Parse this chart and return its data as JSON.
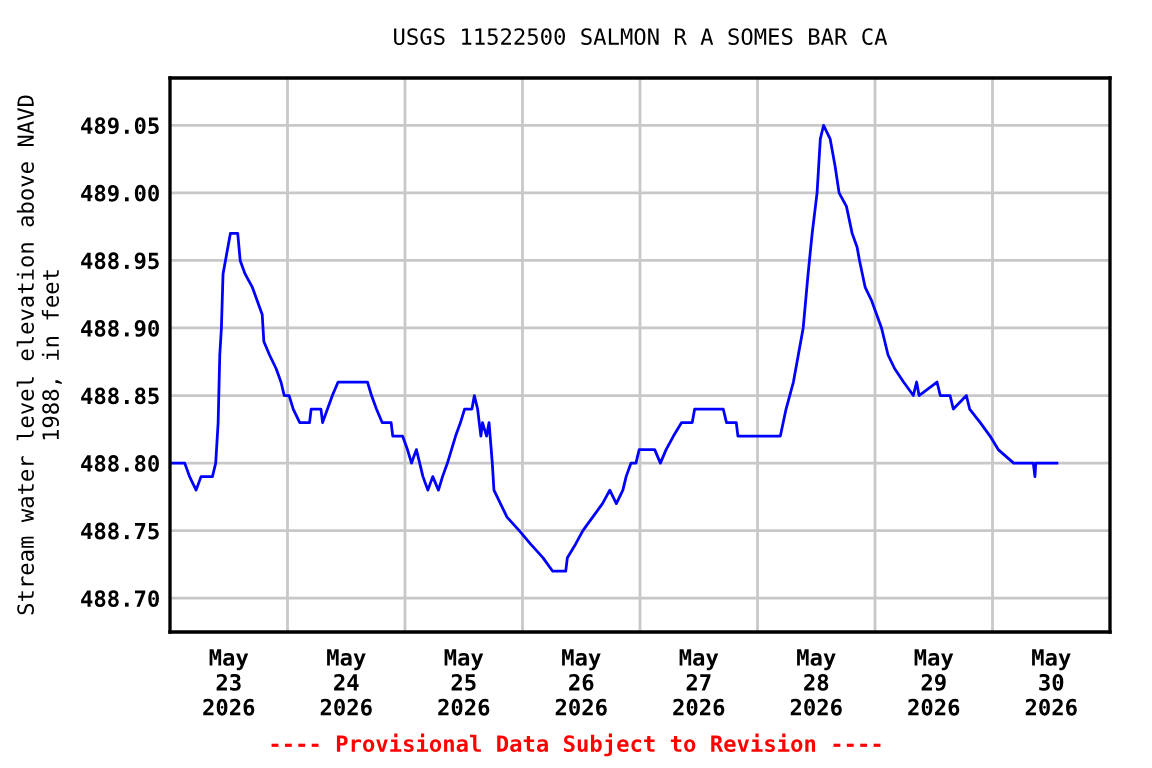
{
  "chart_data": {
    "type": "line",
    "title": "USGS 11522500 SALMON R A SOMES BAR CA",
    "ylabel": "Stream water level elevation above NAVD\n1988, in feet",
    "annotations": [
      "---- Provisional Data Subject to Revision ----"
    ],
    "x": [
      "2026-05-23T00:00",
      "2026-05-23T03:00",
      "2026-05-23T04:00",
      "2026-05-23T05:20",
      "2026-05-23T06:20",
      "2026-05-23T08:40",
      "2026-05-23T09:20",
      "2026-05-23T09:50",
      "2026-05-23T10:10",
      "2026-05-23T10:30",
      "2026-05-23T10:50",
      "2026-05-23T11:20",
      "2026-05-23T12:20",
      "2026-05-23T13:50",
      "2026-05-23T14:20",
      "2026-05-23T15:20",
      "2026-05-23T16:50",
      "2026-05-23T17:50",
      "2026-05-23T18:50",
      "2026-05-23T19:10",
      "2026-05-23T20:20",
      "2026-05-23T21:40",
      "2026-05-23T22:40",
      "2026-05-23T23:20",
      "2026-05-24T00:20",
      "2026-05-24T01:10",
      "2026-05-24T02:30",
      "2026-05-24T04:30",
      "2026-05-24T04:50",
      "2026-05-24T06:50",
      "2026-05-24T07:10",
      "2026-05-24T08:10",
      "2026-05-24T09:10",
      "2026-05-24T10:20",
      "2026-05-24T16:20",
      "2026-05-24T17:10",
      "2026-05-24T18:10",
      "2026-05-24T19:20",
      "2026-05-24T21:10",
      "2026-05-24T21:30",
      "2026-05-24T23:30",
      "2026-05-25T00:30",
      "2026-05-25T01:20",
      "2026-05-25T02:20",
      "2026-05-25T03:40",
      "2026-05-25T04:40",
      "2026-05-25T05:40",
      "2026-05-25T06:50",
      "2026-05-25T07:40",
      "2026-05-25T08:40",
      "2026-05-25T09:30",
      "2026-05-25T10:20",
      "2026-05-25T11:20",
      "2026-05-25T12:10",
      "2026-05-25T13:40",
      "2026-05-25T14:10",
      "2026-05-25T14:50",
      "2026-05-25T15:30",
      "2026-05-25T15:50",
      "2026-05-25T16:40",
      "2026-05-25T17:10",
      "2026-05-25T17:50",
      "2026-05-25T18:10",
      "2026-05-25T19:30",
      "2026-05-25T20:50",
      "2026-05-25T23:20",
      "2026-05-26T01:40",
      "2026-05-26T04:10",
      "2026-05-26T06:10",
      "2026-05-26T08:50",
      "2026-05-26T09:10",
      "2026-05-26T10:50",
      "2026-05-26T12:20",
      "2026-05-26T14:20",
      "2026-05-26T16:20",
      "2026-05-26T17:50",
      "2026-05-26T19:10",
      "2026-05-26T20:30",
      "2026-05-26T21:10",
      "2026-05-26T22:10",
      "2026-05-26T23:10",
      "2026-05-26T23:50",
      "2026-05-27T03:00",
      "2026-05-27T04:10",
      "2026-05-27T05:20",
      "2026-05-27T06:50",
      "2026-05-27T08:30",
      "2026-05-27T10:40",
      "2026-05-27T11:10",
      "2026-05-27T17:00",
      "2026-05-27T17:40",
      "2026-05-27T19:40",
      "2026-05-27T20:00",
      "2026-05-28T04:40",
      "2026-05-28T05:50",
      "2026-05-28T07:20",
      "2026-05-28T08:20",
      "2026-05-28T09:20",
      "2026-05-28T10:20",
      "2026-05-28T11:10",
      "2026-05-28T12:10",
      "2026-05-28T12:50",
      "2026-05-28T13:30",
      "2026-05-28T14:50",
      "2026-05-28T15:50",
      "2026-05-28T16:40",
      "2026-05-28T18:10",
      "2026-05-28T19:20",
      "2026-05-28T20:20",
      "2026-05-28T20:50",
      "2026-05-28T22:00",
      "2026-05-28T23:20",
      "2026-05-29T00:20",
      "2026-05-29T01:20",
      "2026-05-29T02:40",
      "2026-05-29T04:00",
      "2026-05-29T05:50",
      "2026-05-29T07:50",
      "2026-05-29T08:30",
      "2026-05-29T09:00",
      "2026-05-29T12:40",
      "2026-05-29T13:20",
      "2026-05-29T15:20",
      "2026-05-29T16:00",
      "2026-05-29T18:40",
      "2026-05-29T19:20",
      "2026-05-29T21:30",
      "2026-05-29T23:30",
      "2026-05-30T01:10",
      "2026-05-30T04:20",
      "2026-05-30T08:20",
      "2026-05-30T08:40",
      "2026-05-30T08:50",
      "2026-05-30T13:10"
    ],
    "series": [
      {
        "color": "#0000ff",
        "values": [
          488.8,
          488.8,
          488.79,
          488.78,
          488.79,
          488.79,
          488.8,
          488.83,
          488.88,
          488.9,
          488.94,
          488.95,
          488.97,
          488.97,
          488.95,
          488.94,
          488.93,
          488.92,
          488.91,
          488.89,
          488.88,
          488.87,
          488.86,
          488.85,
          488.85,
          488.84,
          488.83,
          488.83,
          488.84,
          488.84,
          488.83,
          488.84,
          488.85,
          488.86,
          488.86,
          488.85,
          488.84,
          488.83,
          488.83,
          488.82,
          488.82,
          488.81,
          488.8,
          488.81,
          488.79,
          488.78,
          488.79,
          488.78,
          488.79,
          488.8,
          488.81,
          488.82,
          488.83,
          488.84,
          488.84,
          488.85,
          488.84,
          488.82,
          488.83,
          488.82,
          488.83,
          488.8,
          488.78,
          488.77,
          488.76,
          488.75,
          488.74,
          488.73,
          488.72,
          488.72,
          488.73,
          488.74,
          488.75,
          488.76,
          488.77,
          488.78,
          488.77,
          488.78,
          488.79,
          488.8,
          488.8,
          488.81,
          488.81,
          488.8,
          488.81,
          488.82,
          488.83,
          488.83,
          488.84,
          488.84,
          488.83,
          488.83,
          488.82,
          488.82,
          488.84,
          488.86,
          488.88,
          488.9,
          488.94,
          488.97,
          489.0,
          489.04,
          489.05,
          489.04,
          489.02,
          489.0,
          488.99,
          488.97,
          488.96,
          488.95,
          488.93,
          488.92,
          488.91,
          488.9,
          488.88,
          488.87,
          488.86,
          488.85,
          488.86,
          488.85,
          488.86,
          488.85,
          488.85,
          488.84,
          488.85,
          488.84,
          488.83,
          488.82,
          488.81,
          488.8,
          488.8,
          488.79,
          488.8,
          488.8
        ]
      }
    ],
    "xlim": [
      "2026-05-23T00:00",
      "2026-05-31T00:00"
    ],
    "xticks": [
      {
        "value": "2026-05-23T12:00",
        "label": "May\n23\n2026"
      },
      {
        "value": "2026-05-24T00:00",
        "label": null
      },
      {
        "value": "2026-05-24T12:00",
        "label": "May\n24\n2026"
      },
      {
        "value": "2026-05-25T00:00",
        "label": null
      },
      {
        "value": "2026-05-25T12:00",
        "label": "May\n25\n2026"
      },
      {
        "value": "2026-05-26T00:00",
        "label": null
      },
      {
        "value": "2026-05-26T12:00",
        "label": "May\n26\n2026"
      },
      {
        "value": "2026-05-27T00:00",
        "label": null
      },
      {
        "value": "2026-05-27T12:00",
        "label": "May\n27\n2026"
      },
      {
        "value": "2026-05-28T00:00",
        "label": null
      },
      {
        "value": "2026-05-28T12:00",
        "label": "May\n28\n2026"
      },
      {
        "value": "2026-05-29T00:00",
        "label": null
      },
      {
        "value": "2026-05-29T12:00",
        "label": "May\n29\n2026"
      },
      {
        "value": "2026-05-30T00:00",
        "label": null
      },
      {
        "value": "2026-05-30T12:00",
        "label": "May\n30\n2026"
      }
    ],
    "ylim": [
      488.675,
      489.085
    ],
    "yticks": [
      {
        "value": 488.7,
        "label": "488.70"
      },
      488.75,
      {
        "value": 488.8,
        "label": "488.80"
      },
      488.85,
      {
        "value": 488.9,
        "label": "488.90"
      },
      488.95,
      {
        "value": 489.0,
        "label": "489.00"
      },
      489.05
    ],
    "grid": true,
    "marker": "none",
    "line_style": "solid"
  }
}
